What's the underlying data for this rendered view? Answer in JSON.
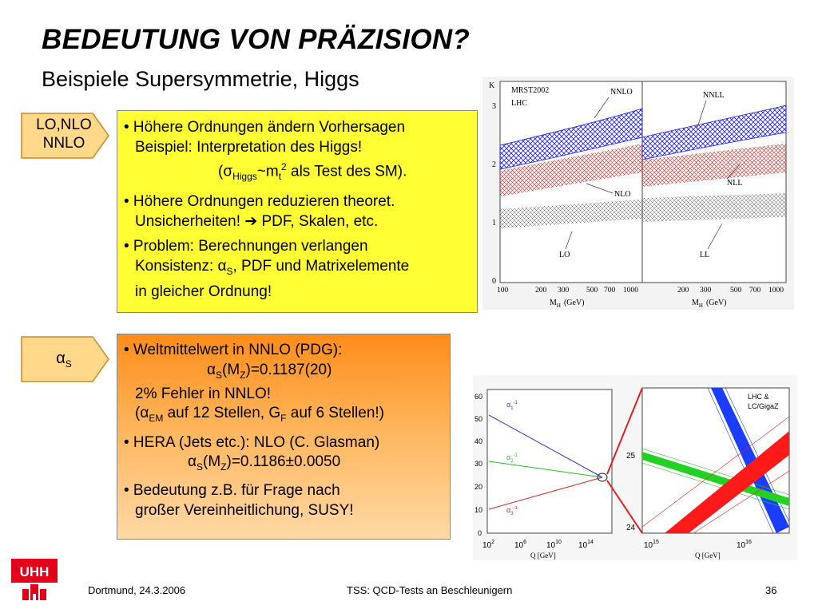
{
  "title": "BEDEUTUNG VON PRÄZISION?",
  "subtitle": "Beispiele Supersymmetrie, Higgs",
  "tags": {
    "order": {
      "line1": "LO,NLO",
      "line2": "NNLO"
    },
    "alphas": {
      "sym": "α",
      "sub": "S"
    }
  },
  "box1": {
    "b1_l1": "• Höhere Ordnungen ändern Vorhersagen",
    "b1_l2": "Beispiel: Interpretation des Higgs!",
    "b1_l3a": "(σ",
    "b1_l3b": "Higgs",
    "b1_l3c": "~m",
    "b1_l3d": "t",
    "b1_l3e": "2",
    "b1_l3f": " als Test des SM).",
    "b2_l1": "• Höhere Ordnungen reduzieren theoret.",
    "b2_l2a": "Unsicherheiten!  ",
    "b2_arrow": "➔",
    "b2_l2b": " PDF, Skalen, etc.",
    "b3_l1": "• Problem: Berechnungen verlangen",
    "b3_l2a": "Konsistenz: α",
    "b3_l2b": "S",
    "b3_l2c": ", PDF und Matrixelemente",
    "b3_l3": "in gleicher Ordnung!"
  },
  "box2": {
    "b1_l1": "• Weltmittelwert in NNLO (PDG):",
    "b1_l2a": "α",
    "b1_l2b": "S",
    "b1_l2c": "(M",
    "b1_l2d": "Z",
    "b1_l2e": ")=0.1187(20)",
    "b1_l3": "2% Fehler in NNLO!",
    "b1_l4a": "(α",
    "b1_l4b": "EM",
    "b1_l4c": " auf 12 Stellen, G",
    "b1_l4d": "F",
    "b1_l4e": " auf 6 Stellen!)",
    "b2_l1": "• HERA (Jets etc.): NLO (C. Glasman)",
    "b2_l2a": "α",
    "b2_l2b": "S",
    "b2_l2c": "(M",
    "b2_l2d": "Z",
    "b2_l2e": ")=0.1186±0.0050",
    "b3_l1": "• Bedeutung z.B. für Frage nach",
    "b3_l2": "großer Vereinheitlichung, SUSY!"
  },
  "figure_higgs": {
    "left_title": "MRST2002",
    "left_sub": "LHC",
    "yaxis": "K",
    "yticks": [
      "3",
      "2",
      "1",
      "0"
    ],
    "xticks_left": [
      "100",
      "200",
      "300",
      "500",
      "700",
      "1000"
    ],
    "xticks_right": [
      "200",
      "300",
      "500",
      "700",
      "1000"
    ],
    "xlabel": "M",
    "xlabel_sub": "H",
    "xlabel_unit": "(GeV)",
    "labels_left": [
      "NNLO",
      "NLO",
      "LO"
    ],
    "labels_right": [
      "NNLL",
      "NLL",
      "LL"
    ],
    "colors": {
      "nnlo": "#1a1aff",
      "nlo": "#e02020",
      "lo": "#333333"
    }
  },
  "figure_gut": {
    "yticks": [
      "60",
      "50",
      "40",
      "30",
      "20",
      "10",
      "0"
    ],
    "xticks": [
      {
        "base": "10",
        "exp": "2"
      },
      {
        "base": "10",
        "exp": "6"
      },
      {
        "base": "10",
        "exp": "10"
      },
      {
        "base": "10",
        "exp": "14"
      }
    ],
    "xlabel": "Q [GeV]",
    "alpha_labels": [
      {
        "sym": "α",
        "sub": "1",
        "sup": "-1",
        "color": "#2a3bd6"
      },
      {
        "sym": "α",
        "sub": "2",
        "sup": "-1",
        "color": "#22c122"
      },
      {
        "sym": "α",
        "sub": "3",
        "sup": "-1",
        "color": "#e02020"
      }
    ],
    "zoom_legend_l1": "LHC  &",
    "zoom_legend_l2": "LC/GigaZ",
    "zoom_yticks": [
      "25",
      "24"
    ],
    "zoom_xticks": [
      {
        "base": "10",
        "exp": "15"
      },
      {
        "base": "10",
        "exp": "16"
      }
    ],
    "zoom_xlabel": "Q [GeV]"
  },
  "footer": {
    "date": "Dortmund, 24.3.2006",
    "talk": "TSS: QCD-Tests an Beschleunigern",
    "page": "36"
  },
  "logo": {
    "text": "UHH"
  }
}
